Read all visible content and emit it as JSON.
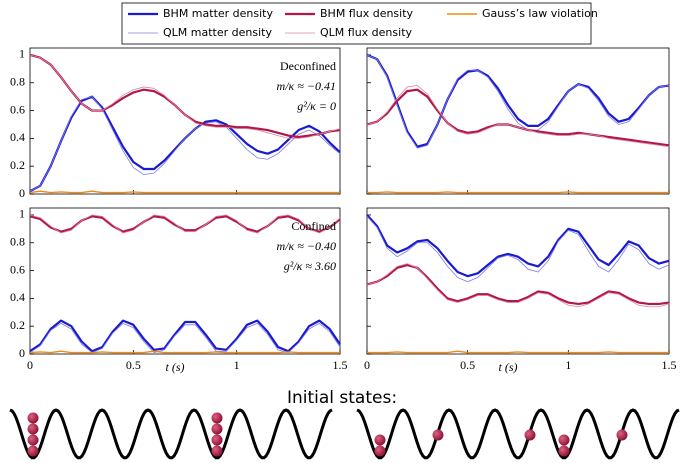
{
  "chart_data": [
    {
      "type": "line",
      "xlim": [
        0,
        1.5
      ],
      "ylim": [
        0,
        1.05
      ],
      "xticks": [
        0,
        0.5,
        1,
        1.5
      ],
      "yticks": [
        0,
        0.2,
        0.4,
        0.6,
        0.8,
        1
      ],
      "annotations": [
        "Deconfined",
        "m/κ ≈ −0.41",
        "g²/κ = 0"
      ],
      "x": [
        0,
        0.05,
        0.1,
        0.15,
        0.2,
        0.25,
        0.3,
        0.35,
        0.4,
        0.45,
        0.5,
        0.55,
        0.6,
        0.65,
        0.7,
        0.75,
        0.8,
        0.85,
        0.9,
        0.95,
        1,
        1.05,
        1.1,
        1.15,
        1.2,
        1.25,
        1.3,
        1.35,
        1.4,
        1.45,
        1.5
      ],
      "series": [
        {
          "name": "BHM matter density",
          "color": "#1a1ad0",
          "values": [
            0.02,
            0.06,
            0.2,
            0.38,
            0.55,
            0.67,
            0.7,
            0.62,
            0.48,
            0.34,
            0.23,
            0.18,
            0.18,
            0.24,
            0.32,
            0.4,
            0.47,
            0.52,
            0.53,
            0.5,
            0.43,
            0.36,
            0.31,
            0.29,
            0.32,
            0.39,
            0.46,
            0.49,
            0.45,
            0.37,
            0.3
          ]
        },
        {
          "name": "QLM matter density",
          "color": "#7c7ce6",
          "values": [
            0.02,
            0.06,
            0.2,
            0.38,
            0.56,
            0.68,
            0.7,
            0.61,
            0.46,
            0.31,
            0.19,
            0.14,
            0.15,
            0.22,
            0.31,
            0.4,
            0.47,
            0.51,
            0.52,
            0.48,
            0.4,
            0.32,
            0.26,
            0.25,
            0.29,
            0.36,
            0.43,
            0.46,
            0.42,
            0.35,
            0.29
          ]
        },
        {
          "name": "BHM flux density",
          "color": "#b3164a",
          "values": [
            1,
            0.98,
            0.93,
            0.84,
            0.74,
            0.65,
            0.6,
            0.6,
            0.64,
            0.69,
            0.73,
            0.75,
            0.74,
            0.7,
            0.64,
            0.57,
            0.52,
            0.5,
            0.49,
            0.49,
            0.48,
            0.48,
            0.47,
            0.46,
            0.44,
            0.42,
            0.41,
            0.42,
            0.43,
            0.45,
            0.46
          ]
        },
        {
          "name": "QLM flux density",
          "color": "#d98aa6",
          "values": [
            1,
            0.98,
            0.93,
            0.84,
            0.74,
            0.65,
            0.6,
            0.6,
            0.65,
            0.71,
            0.75,
            0.77,
            0.76,
            0.71,
            0.64,
            0.57,
            0.51,
            0.49,
            0.48,
            0.48,
            0.47,
            0.47,
            0.46,
            0.44,
            0.42,
            0.4,
            0.4,
            0.41,
            0.43,
            0.45,
            0.47
          ]
        },
        {
          "name": "Gauss’s law violation",
          "color": "#f28a12",
          "values": [
            0.01,
            0.02,
            0.01,
            0.015,
            0.01,
            0.01,
            0.02,
            0.01,
            0.01,
            0.01,
            0.015,
            0.01,
            0.01,
            0.01,
            0.01,
            0.01,
            0.01,
            0.01,
            0.01,
            0.01,
            0.01,
            0.01,
            0.01,
            0.01,
            0.01,
            0.01,
            0.01,
            0.01,
            0.01,
            0.01,
            0.01
          ]
        }
      ]
    },
    {
      "type": "line",
      "xlim": [
        0,
        1.5
      ],
      "ylim": [
        0,
        1.05
      ],
      "xticks": [
        0,
        0.5,
        1,
        1.5
      ],
      "yticks": [
        0,
        0.2,
        0.4,
        0.6,
        0.8,
        1
      ],
      "x": [
        0,
        0.05,
        0.1,
        0.15,
        0.2,
        0.25,
        0.3,
        0.35,
        0.4,
        0.45,
        0.5,
        0.55,
        0.6,
        0.65,
        0.7,
        0.75,
        0.8,
        0.85,
        0.9,
        0.95,
        1,
        1.05,
        1.1,
        1.15,
        1.2,
        1.25,
        1.3,
        1.35,
        1.4,
        1.45,
        1.5
      ],
      "series": [
        {
          "color": "#1a1ad0",
          "values": [
            1,
            0.97,
            0.85,
            0.65,
            0.45,
            0.34,
            0.36,
            0.5,
            0.68,
            0.82,
            0.88,
            0.89,
            0.85,
            0.76,
            0.64,
            0.54,
            0.49,
            0.49,
            0.54,
            0.64,
            0.74,
            0.79,
            0.77,
            0.69,
            0.58,
            0.52,
            0.54,
            0.62,
            0.71,
            0.77,
            0.78
          ]
        },
        {
          "color": "#7c7ce6",
          "values": [
            1,
            0.97,
            0.84,
            0.64,
            0.44,
            0.33,
            0.35,
            0.5,
            0.68,
            0.83,
            0.89,
            0.89,
            0.84,
            0.74,
            0.61,
            0.51,
            0.46,
            0.46,
            0.52,
            0.63,
            0.74,
            0.79,
            0.76,
            0.67,
            0.56,
            0.5,
            0.52,
            0.61,
            0.71,
            0.77,
            0.78
          ]
        },
        {
          "color": "#b3164a",
          "values": [
            0.5,
            0.52,
            0.58,
            0.67,
            0.74,
            0.75,
            0.7,
            0.6,
            0.51,
            0.46,
            0.44,
            0.45,
            0.48,
            0.5,
            0.5,
            0.48,
            0.46,
            0.45,
            0.44,
            0.43,
            0.43,
            0.44,
            0.43,
            0.42,
            0.41,
            0.4,
            0.39,
            0.38,
            0.37,
            0.36,
            0.35
          ]
        },
        {
          "color": "#d98aa6",
          "values": [
            0.5,
            0.52,
            0.59,
            0.69,
            0.77,
            0.78,
            0.72,
            0.61,
            0.51,
            0.45,
            0.43,
            0.44,
            0.47,
            0.5,
            0.5,
            0.48,
            0.46,
            0.44,
            0.43,
            0.42,
            0.42,
            0.43,
            0.43,
            0.42,
            0.4,
            0.39,
            0.38,
            0.37,
            0.36,
            0.35,
            0.34
          ]
        },
        {
          "color": "#f28a12",
          "values": [
            0.01,
            0.01,
            0.015,
            0.01,
            0.01,
            0.01,
            0.01,
            0.01,
            0.015,
            0.01,
            0.01,
            0.01,
            0.01,
            0.01,
            0.01,
            0.01,
            0.01,
            0.01,
            0.01,
            0.01,
            0.015,
            0.01,
            0.01,
            0.01,
            0.01,
            0.01,
            0.01,
            0.01,
            0.01,
            0.01,
            0.01
          ]
        }
      ]
    },
    {
      "type": "line",
      "xlim": [
        0,
        1.5
      ],
      "ylim": [
        0,
        1.05
      ],
      "xticks": [
        0,
        0.5,
        1,
        1.5
      ],
      "yticks": [
        0,
        0.2,
        0.4,
        0.6,
        0.8,
        1
      ],
      "xlabel": "t (s)",
      "annotations": [
        "Confined",
        "m/κ ≈ −0.40",
        "g²/κ ≈ 3.60"
      ],
      "x": [
        0,
        0.05,
        0.1,
        0.15,
        0.2,
        0.25,
        0.3,
        0.35,
        0.4,
        0.45,
        0.5,
        0.55,
        0.6,
        0.65,
        0.7,
        0.75,
        0.8,
        0.85,
        0.9,
        0.95,
        1,
        1.05,
        1.1,
        1.15,
        1.2,
        1.25,
        1.3,
        1.35,
        1.4,
        1.45,
        1.5
      ],
      "series": [
        {
          "color": "#1a1ad0",
          "values": [
            0.02,
            0.07,
            0.18,
            0.24,
            0.2,
            0.09,
            0.02,
            0.05,
            0.16,
            0.24,
            0.21,
            0.11,
            0.03,
            0.04,
            0.14,
            0.23,
            0.23,
            0.14,
            0.04,
            0.03,
            0.11,
            0.21,
            0.24,
            0.16,
            0.05,
            0.02,
            0.09,
            0.2,
            0.24,
            0.18,
            0.07
          ]
        },
        {
          "color": "#7c7ce6",
          "values": [
            0.01,
            0.06,
            0.17,
            0.22,
            0.18,
            0.07,
            0.01,
            0.04,
            0.15,
            0.22,
            0.19,
            0.09,
            0.01,
            0.03,
            0.13,
            0.21,
            0.21,
            0.12,
            0.02,
            0.02,
            0.1,
            0.19,
            0.22,
            0.14,
            0.03,
            0.01,
            0.08,
            0.18,
            0.22,
            0.16,
            0.05
          ]
        },
        {
          "color": "#b3164a",
          "values": [
            0.99,
            0.97,
            0.91,
            0.88,
            0.9,
            0.96,
            0.99,
            0.98,
            0.92,
            0.88,
            0.9,
            0.95,
            0.99,
            0.98,
            0.93,
            0.89,
            0.89,
            0.93,
            0.98,
            0.99,
            0.95,
            0.9,
            0.88,
            0.92,
            0.98,
            0.99,
            0.96,
            0.9,
            0.88,
            0.91,
            0.97
          ]
        },
        {
          "color": "#d98aa6",
          "values": [
            1,
            0.98,
            0.92,
            0.87,
            0.89,
            0.96,
            1,
            0.99,
            0.93,
            0.87,
            0.89,
            0.95,
            1,
            0.99,
            0.94,
            0.88,
            0.88,
            0.93,
            0.99,
            1,
            0.96,
            0.89,
            0.87,
            0.92,
            0.99,
            1,
            0.97,
            0.9,
            0.87,
            0.91,
            0.98
          ]
        },
        {
          "color": "#f28a12",
          "values": [
            0.01,
            0.015,
            0.01,
            0.02,
            0.01,
            0.01,
            0.01,
            0.015,
            0.01,
            0.01,
            0.01,
            0.01,
            0.02,
            0.01,
            0.01,
            0.01,
            0.01,
            0.01,
            0.015,
            0.01,
            0.01,
            0.01,
            0.01,
            0.01,
            0.01,
            0.015,
            0.01,
            0.01,
            0.01,
            0.01,
            0.01
          ]
        }
      ]
    },
    {
      "type": "line",
      "xlim": [
        0,
        1.5
      ],
      "ylim": [
        0,
        1.05
      ],
      "xticks": [
        0,
        0.5,
        1,
        1.5
      ],
      "yticks": [
        0,
        0.2,
        0.4,
        0.6,
        0.8,
        1
      ],
      "xlabel": "t (s)",
      "x": [
        0,
        0.05,
        0.1,
        0.15,
        0.2,
        0.25,
        0.3,
        0.35,
        0.4,
        0.45,
        0.5,
        0.55,
        0.6,
        0.65,
        0.7,
        0.75,
        0.8,
        0.85,
        0.9,
        0.95,
        1,
        1.05,
        1.1,
        1.15,
        1.2,
        1.25,
        1.3,
        1.35,
        1.4,
        1.45,
        1.5
      ],
      "series": [
        {
          "color": "#1a1ad0",
          "values": [
            1,
            0.92,
            0.78,
            0.73,
            0.76,
            0.81,
            0.82,
            0.76,
            0.67,
            0.59,
            0.56,
            0.58,
            0.64,
            0.7,
            0.72,
            0.7,
            0.65,
            0.63,
            0.7,
            0.82,
            0.9,
            0.88,
            0.78,
            0.68,
            0.64,
            0.72,
            0.81,
            0.78,
            0.69,
            0.65,
            0.67
          ]
        },
        {
          "color": "#7c7ce6",
          "values": [
            0.99,
            0.91,
            0.76,
            0.7,
            0.74,
            0.8,
            0.8,
            0.73,
            0.63,
            0.55,
            0.52,
            0.55,
            0.62,
            0.69,
            0.71,
            0.68,
            0.61,
            0.59,
            0.67,
            0.81,
            0.89,
            0.86,
            0.74,
            0.63,
            0.59,
            0.68,
            0.79,
            0.75,
            0.65,
            0.61,
            0.64
          ]
        },
        {
          "color": "#b3164a",
          "values": [
            0.5,
            0.52,
            0.56,
            0.62,
            0.64,
            0.62,
            0.55,
            0.47,
            0.4,
            0.38,
            0.4,
            0.43,
            0.43,
            0.4,
            0.38,
            0.38,
            0.41,
            0.45,
            0.44,
            0.4,
            0.37,
            0.36,
            0.37,
            0.41,
            0.45,
            0.44,
            0.4,
            0.37,
            0.36,
            0.36,
            0.37
          ]
        },
        {
          "color": "#d98aa6",
          "values": [
            0.5,
            0.52,
            0.57,
            0.63,
            0.65,
            0.62,
            0.54,
            0.46,
            0.39,
            0.37,
            0.39,
            0.42,
            0.42,
            0.39,
            0.37,
            0.37,
            0.4,
            0.44,
            0.43,
            0.39,
            0.35,
            0.34,
            0.36,
            0.4,
            0.44,
            0.43,
            0.39,
            0.35,
            0.34,
            0.34,
            0.36
          ]
        },
        {
          "color": "#f28a12",
          "values": [
            0.01,
            0.01,
            0.01,
            0.015,
            0.01,
            0.01,
            0.01,
            0.01,
            0.01,
            0.02,
            0.01,
            0.01,
            0.01,
            0.01,
            0.01,
            0.015,
            0.01,
            0.01,
            0.01,
            0.01,
            0.01,
            0.01,
            0.01,
            0.01,
            0.015,
            0.01,
            0.01,
            0.01,
            0.01,
            0.01,
            0.01
          ]
        }
      ]
    }
  ],
  "diagram": {
    "title": "Initial states:"
  }
}
